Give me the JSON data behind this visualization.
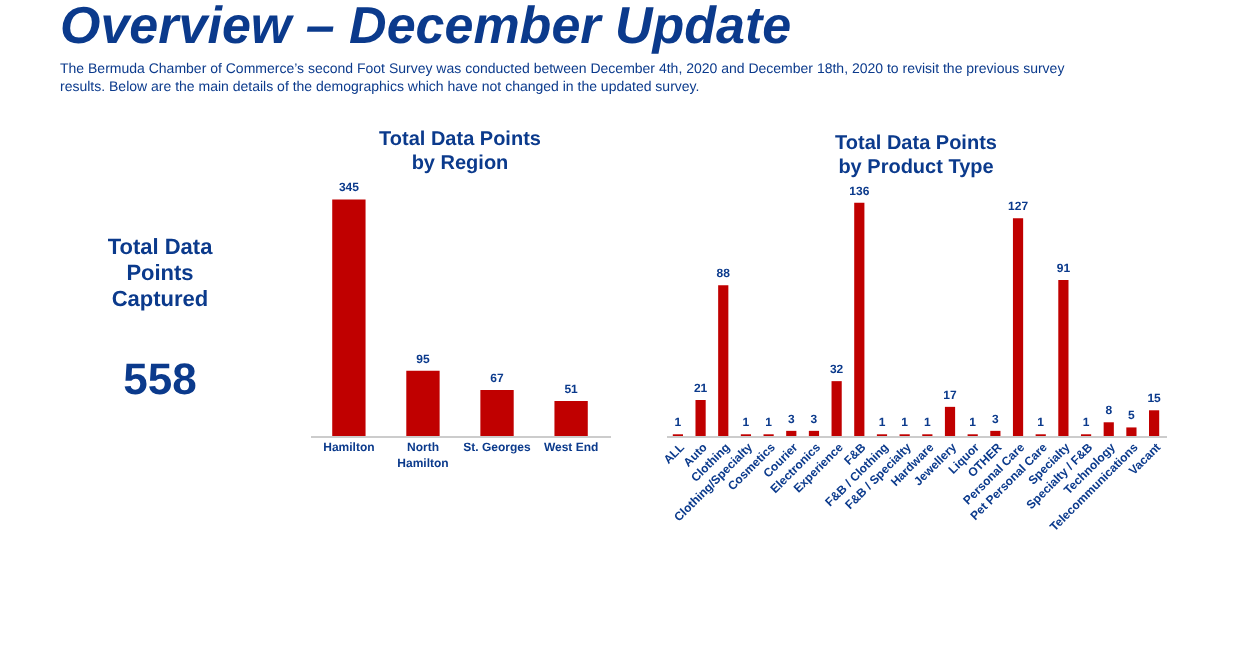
{
  "chart_data": [
    {
      "type": "other",
      "title": "Overview – December Update",
      "subtitle": "The Bermuda Chamber of Commerce’s second Foot Survey was conducted between December 4th, 2020 and December 18th, 2020 to revisit the previous survey results. Below are the main details of the demographics which have not changed in the updated survey.",
      "annotations": [
        "Total Data Points Captured",
        "558"
      ]
    },
    {
      "type": "bar",
      "title": "Total Data Points by Region",
      "categories": [
        "Hamilton",
        "North Hamilton",
        "St. Georges",
        "West End"
      ],
      "values": [
        345,
        95,
        67,
        51
      ],
      "color": "#c00000",
      "data_labels": true,
      "grid": false
    },
    {
      "type": "bar",
      "title": "Total Data Points by Product Type",
      "categories": [
        "ALL",
        "Auto",
        "Clothing",
        "Clothing/Specialty",
        "Cosmetics",
        "Courier",
        "Electronics",
        "Experience",
        "F&B",
        "F&B / Clothing",
        "F&B / Specialty",
        "Hardware",
        "Jewellery",
        "Liquor",
        "OTHER",
        "Personal Care",
        "Pet Personal Care",
        "Specialty",
        "Specialty / F&B",
        "Technology",
        "Telecommunications",
        "Vacant"
      ],
      "values": [
        1,
        21,
        88,
        1,
        1,
        3,
        3,
        32,
        136,
        1,
        1,
        1,
        17,
        1,
        3,
        127,
        1,
        91,
        1,
        8,
        5,
        15
      ],
      "color": "#c00000",
      "data_labels": true,
      "grid": false
    }
  ]
}
